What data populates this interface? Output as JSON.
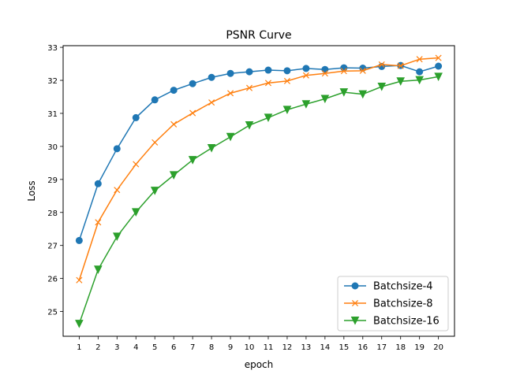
{
  "chart_data": {
    "type": "line",
    "title": "PSNR Curve",
    "xlabel": "epoch",
    "ylabel": "Loss",
    "x": [
      1,
      2,
      3,
      4,
      5,
      6,
      7,
      8,
      9,
      10,
      11,
      12,
      13,
      14,
      15,
      16,
      17,
      18,
      19,
      20
    ],
    "x_tick_labels": [
      "1",
      "2",
      "3",
      "4",
      "5",
      "6",
      "7",
      "8",
      "9",
      "10",
      "11",
      "12",
      "13",
      "14",
      "15",
      "16",
      "17",
      "18",
      "19",
      "20"
    ],
    "y_ticks": [
      25,
      26,
      27,
      28,
      29,
      30,
      31,
      32,
      33
    ],
    "y_tick_labels": [
      "25",
      "26",
      "27",
      "28",
      "29",
      "30",
      "31",
      "32",
      "33"
    ],
    "xlim": [
      0.15,
      20.85
    ],
    "ylim": [
      24.25,
      33.05
    ],
    "grid": false,
    "legend_position": "lower-right",
    "series": [
      {
        "name": "Batchsize-4",
        "color": "#1f77b4",
        "marker": "circle",
        "values": [
          27.15,
          28.87,
          29.93,
          30.87,
          31.41,
          31.7,
          31.9,
          32.09,
          32.21,
          32.26,
          32.31,
          32.29,
          32.36,
          32.33,
          32.38,
          32.37,
          32.42,
          32.45,
          32.26,
          32.43
        ]
      },
      {
        "name": "Batchsize-8",
        "color": "#ff7f0e",
        "marker": "x",
        "values": [
          25.95,
          27.7,
          28.68,
          29.46,
          30.12,
          30.67,
          31.01,
          31.33,
          31.61,
          31.77,
          31.92,
          31.98,
          32.15,
          32.21,
          32.28,
          32.29,
          32.48,
          32.44,
          32.64,
          32.68
        ]
      },
      {
        "name": "Batchsize-16",
        "color": "#2ca02c",
        "marker": "triangle-down",
        "values": [
          24.63,
          26.27,
          27.27,
          28.01,
          28.66,
          29.13,
          29.59,
          29.95,
          30.29,
          30.64,
          30.87,
          31.11,
          31.28,
          31.44,
          31.64,
          31.58,
          31.81,
          31.97,
          32.01,
          32.11
        ]
      }
    ]
  }
}
